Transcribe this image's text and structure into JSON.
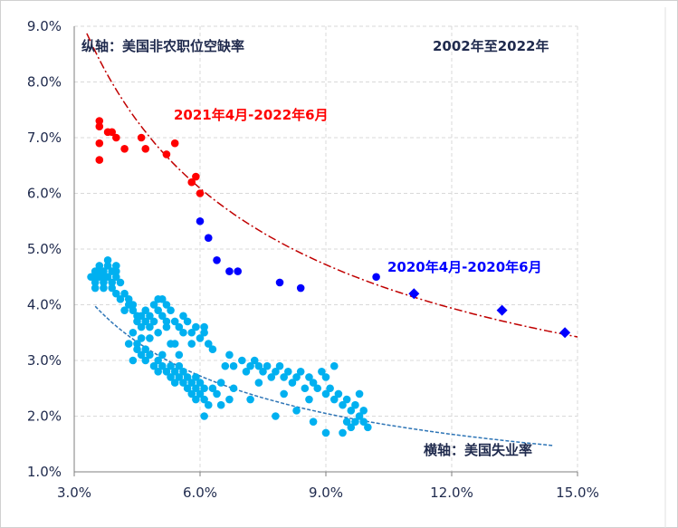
{
  "chart_data": {
    "type": "scatter",
    "title": "",
    "xlabel": "横轴：美国失业率",
    "ylabel": "纵轴：美国非农职位空缺率",
    "xlim": [
      3.0,
      15.0
    ],
    "ylim": [
      1.0,
      9.0
    ],
    "x_ticks": [
      "3.0%",
      "6.0%",
      "9.0%",
      "12.0%",
      "15.0%"
    ],
    "y_ticks": [
      "1.0%",
      "2.0%",
      "3.0%",
      "4.0%",
      "5.0%",
      "6.0%",
      "7.0%",
      "8.0%",
      "9.0%"
    ],
    "grid": true,
    "colors": {
      "series_2002_2020": "#00b0f0",
      "series_2021_2022": "#ff0000",
      "series_2020_covid": "#0000ff",
      "fit_red": "#c00000",
      "fit_blue": "#2e75b6",
      "text": "#1f2a4d"
    },
    "annotations": {
      "period": "2002年至2022年",
      "red_period": "2021年4月-2022年6月",
      "blue_period": "2020年4月-2020年6月"
    },
    "series": [
      {
        "marker": "circle",
        "points": [
          [
            3.4,
            4.5
          ],
          [
            3.5,
            4.4
          ],
          [
            3.5,
            4.6
          ],
          [
            3.5,
            4.3
          ],
          [
            3.6,
            4.6
          ],
          [
            3.6,
            4.7
          ],
          [
            3.6,
            4.5
          ],
          [
            3.7,
            4.4
          ],
          [
            3.7,
            4.6
          ],
          [
            3.7,
            4.3
          ],
          [
            3.8,
            4.7
          ],
          [
            3.8,
            4.5
          ],
          [
            3.8,
            4.8
          ],
          [
            3.9,
            4.6
          ],
          [
            3.9,
            4.4
          ],
          [
            3.9,
            4.3
          ],
          [
            4.0,
            4.7
          ],
          [
            4.0,
            4.5
          ],
          [
            4.0,
            4.6
          ],
          [
            4.0,
            4.2
          ],
          [
            4.1,
            4.1
          ],
          [
            4.1,
            4.4
          ],
          [
            4.2,
            4.2
          ],
          [
            4.3,
            4.1
          ],
          [
            4.3,
            4.0
          ],
          [
            4.4,
            3.9
          ],
          [
            4.4,
            4.0
          ],
          [
            4.5,
            3.8
          ],
          [
            4.5,
            3.7
          ],
          [
            4.6,
            3.6
          ],
          [
            4.6,
            3.8
          ],
          [
            4.7,
            3.9
          ],
          [
            4.7,
            3.7
          ],
          [
            4.8,
            3.8
          ],
          [
            4.8,
            3.6
          ],
          [
            4.9,
            4.0
          ],
          [
            5.0,
            3.9
          ],
          [
            5.0,
            4.1
          ],
          [
            5.1,
            3.8
          ],
          [
            5.1,
            4.1
          ],
          [
            5.2,
            4.0
          ],
          [
            5.2,
            3.7
          ],
          [
            5.3,
            3.9
          ],
          [
            5.4,
            3.7
          ],
          [
            5.5,
            3.6
          ],
          [
            5.6,
            3.8
          ],
          [
            5.7,
            3.7
          ],
          [
            5.8,
            3.5
          ],
          [
            5.9,
            3.6
          ],
          [
            6.0,
            3.4
          ],
          [
            6.1,
            3.5
          ],
          [
            6.2,
            3.3
          ],
          [
            6.3,
            3.2
          ],
          [
            6.1,
            3.6
          ],
          [
            5.8,
            3.3
          ],
          [
            5.6,
            3.5
          ],
          [
            5.4,
            3.3
          ],
          [
            5.2,
            3.6
          ],
          [
            5.0,
            3.5
          ],
          [
            4.8,
            3.4
          ],
          [
            4.6,
            3.4
          ],
          [
            4.5,
            3.3
          ],
          [
            4.4,
            3.5
          ],
          [
            4.5,
            3.2
          ],
          [
            4.6,
            3.1
          ],
          [
            4.7,
            3.0
          ],
          [
            4.7,
            3.2
          ],
          [
            4.8,
            3.1
          ],
          [
            4.9,
            2.9
          ],
          [
            5.0,
            3.0
          ],
          [
            5.0,
            2.8
          ],
          [
            5.1,
            3.1
          ],
          [
            5.1,
            2.9
          ],
          [
            5.2,
            2.8
          ],
          [
            5.3,
            2.9
          ],
          [
            5.3,
            2.7
          ],
          [
            5.4,
            2.8
          ],
          [
            5.4,
            2.6
          ],
          [
            5.5,
            2.7
          ],
          [
            5.5,
            2.9
          ],
          [
            5.6,
            2.6
          ],
          [
            5.6,
            2.8
          ],
          [
            5.7,
            2.5
          ],
          [
            5.7,
            2.7
          ],
          [
            5.8,
            2.6
          ],
          [
            5.8,
            2.4
          ],
          [
            5.9,
            2.5
          ],
          [
            5.9,
            2.7
          ],
          [
            6.0,
            2.4
          ],
          [
            6.0,
            2.6
          ],
          [
            6.1,
            2.3
          ],
          [
            6.1,
            2.5
          ],
          [
            6.2,
            2.2
          ],
          [
            6.3,
            2.5
          ],
          [
            6.4,
            2.4
          ],
          [
            6.5,
            2.6
          ],
          [
            6.6,
            2.9
          ],
          [
            6.7,
            3.1
          ],
          [
            6.8,
            2.9
          ],
          [
            7.0,
            3.0
          ],
          [
            7.1,
            2.8
          ],
          [
            7.2,
            2.9
          ],
          [
            7.3,
            3.0
          ],
          [
            7.4,
            2.9
          ],
          [
            7.5,
            2.8
          ],
          [
            7.6,
            2.9
          ],
          [
            7.7,
            2.7
          ],
          [
            7.8,
            2.8
          ],
          [
            7.9,
            2.9
          ],
          [
            8.0,
            2.7
          ],
          [
            8.1,
            2.8
          ],
          [
            8.2,
            2.6
          ],
          [
            8.3,
            2.7
          ],
          [
            8.4,
            2.8
          ],
          [
            8.5,
            2.5
          ],
          [
            8.6,
            2.7
          ],
          [
            8.7,
            2.6
          ],
          [
            8.8,
            2.5
          ],
          [
            8.9,
            2.8
          ],
          [
            9.0,
            2.7
          ],
          [
            9.0,
            2.4
          ],
          [
            9.1,
            2.5
          ],
          [
            9.2,
            2.3
          ],
          [
            9.3,
            2.4
          ],
          [
            9.4,
            2.2
          ],
          [
            9.5,
            2.3
          ],
          [
            9.6,
            2.1
          ],
          [
            9.7,
            2.2
          ],
          [
            9.8,
            2.0
          ],
          [
            9.9,
            1.9
          ],
          [
            9.9,
            2.1
          ],
          [
            10.0,
            1.8
          ],
          [
            9.8,
            2.4
          ],
          [
            9.6,
            1.8
          ],
          [
            9.5,
            1.9
          ],
          [
            9.4,
            1.7
          ],
          [
            9.0,
            1.7
          ],
          [
            8.7,
            1.9
          ],
          [
            8.3,
            2.1
          ],
          [
            7.8,
            2.0
          ],
          [
            7.2,
            2.3
          ],
          [
            6.7,
            2.3
          ],
          [
            6.1,
            2.0
          ],
          [
            3.5,
            4.5
          ],
          [
            3.7,
            4.5
          ],
          [
            4.2,
            3.9
          ],
          [
            4.9,
            3.7
          ],
          [
            5.3,
            3.3
          ],
          [
            5.5,
            3.1
          ],
          [
            5.9,
            2.3
          ],
          [
            6.5,
            2.2
          ],
          [
            7.4,
            2.6
          ],
          [
            8.6,
            2.3
          ],
          [
            9.2,
            2.9
          ],
          [
            9.7,
            1.9
          ],
          [
            4.3,
            3.3
          ],
          [
            4.4,
            3.0
          ],
          [
            6.8,
            2.5
          ],
          [
            8.0,
            2.4
          ]
        ]
      },
      {
        "marker": "circle",
        "points": [
          [
            3.6,
            7.3
          ],
          [
            3.6,
            7.2
          ],
          [
            3.6,
            6.9
          ],
          [
            3.6,
            6.6
          ],
          [
            3.8,
            7.1
          ],
          [
            3.9,
            7.1
          ],
          [
            4.0,
            7.0
          ],
          [
            4.2,
            6.8
          ],
          [
            4.6,
            7.0
          ],
          [
            4.7,
            6.8
          ],
          [
            5.2,
            6.7
          ],
          [
            5.4,
            6.9
          ],
          [
            5.8,
            6.2
          ],
          [
            5.9,
            6.3
          ],
          [
            6.0,
            6.0
          ]
        ]
      },
      {
        "marker": "circle",
        "points": [
          [
            6.0,
            5.5
          ],
          [
            6.2,
            5.2
          ],
          [
            6.4,
            4.8
          ],
          [
            6.7,
            4.6
          ],
          [
            6.9,
            4.6
          ],
          [
            7.9,
            4.4
          ],
          [
            8.4,
            4.3
          ],
          [
            10.2,
            4.5
          ]
        ]
      },
      {
        "marker": "diamond",
        "points": [
          [
            11.1,
            4.2
          ],
          [
            13.2,
            3.9
          ],
          [
            14.7,
            3.5
          ]
        ]
      }
    ]
  }
}
